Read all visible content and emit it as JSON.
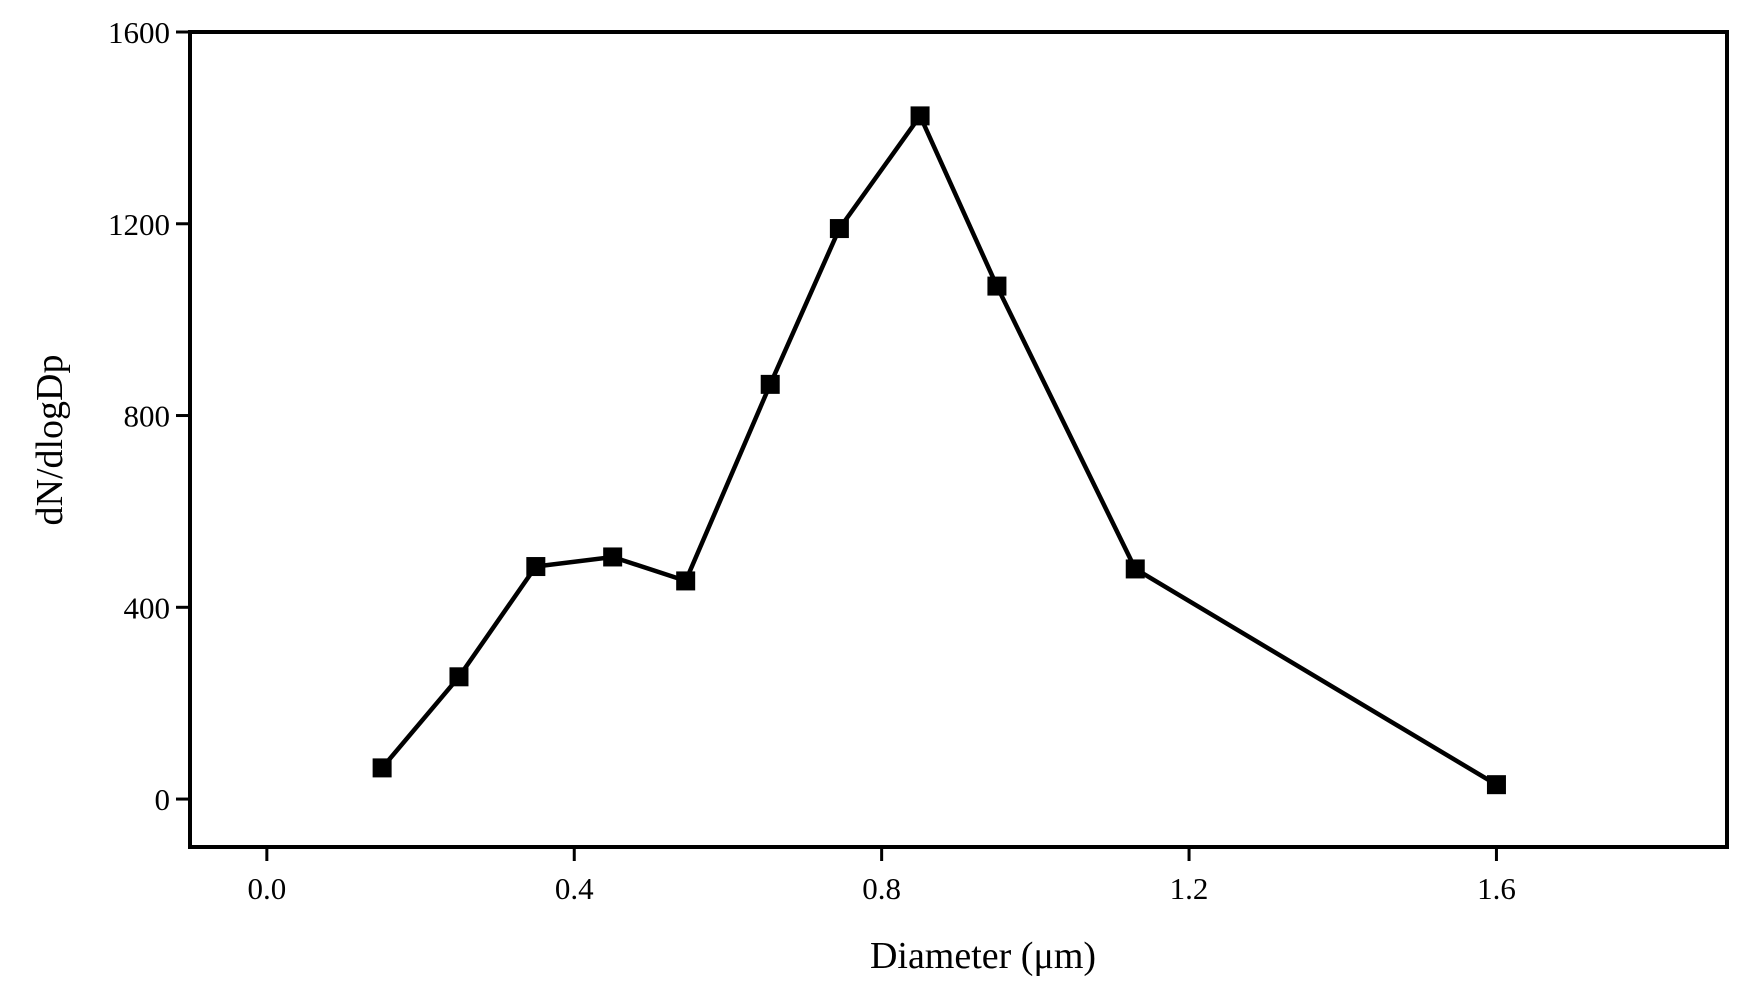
{
  "chart_data": {
    "type": "line",
    "title": "",
    "xlabel": "Diameter (μm)",
    "ylabel": "dN/dlogDp",
    "xlim": [
      -0.1,
      1.9
    ],
    "ylim": [
      -100,
      1600
    ],
    "xticks": [
      0.0,
      0.4,
      0.8,
      1.2,
      1.6
    ],
    "xtick_labels": [
      "0.0",
      "0.4",
      "0.8",
      "1.2",
      "1.6"
    ],
    "yticks": [
      0,
      400,
      800,
      1200,
      1600
    ],
    "ytick_labels": [
      "0",
      "400",
      "800",
      "1200",
      "1600"
    ],
    "grid": false,
    "legend": "none",
    "marker": "square",
    "color": "#000000",
    "series": [
      {
        "x": [
          0.15,
          0.25,
          0.35,
          0.45,
          0.545,
          0.655,
          0.745,
          0.85,
          0.95,
          1.13,
          1.6
        ],
        "y": [
          65,
          255,
          485,
          505,
          455,
          865,
          1190,
          1425,
          1070,
          480,
          30
        ]
      }
    ]
  }
}
